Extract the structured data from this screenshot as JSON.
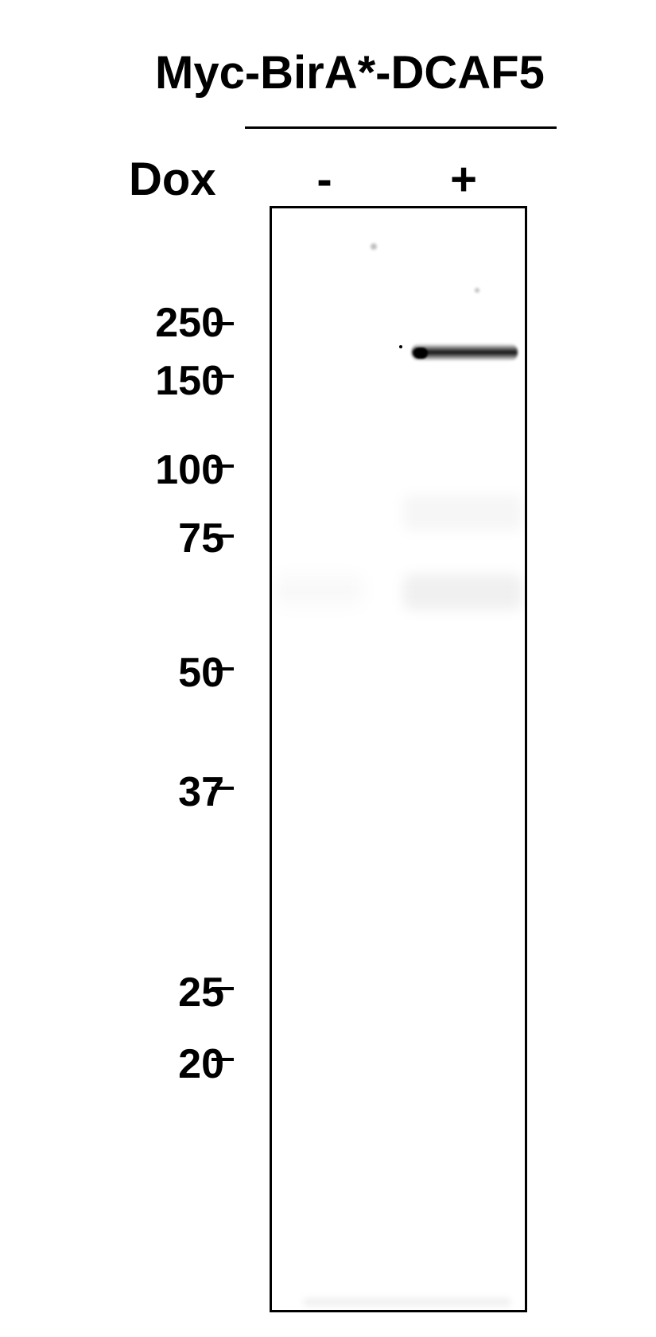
{
  "header": {
    "construct_label": "Myc-BirA*-DCAF5",
    "treatment_label": "Dox",
    "lanes": [
      "-",
      "+"
    ]
  },
  "markers": [
    {
      "label": "250",
      "kDa": 250
    },
    {
      "label": "150",
      "kDa": 150
    },
    {
      "label": "100",
      "kDa": 100
    },
    {
      "label": "75",
      "kDa": 75
    },
    {
      "label": "50",
      "kDa": 50
    },
    {
      "label": "37",
      "kDa": 37
    },
    {
      "label": "25",
      "kDa": 25
    },
    {
      "label": "20",
      "kDa": 20
    }
  ],
  "tick_glyph": "–"
}
